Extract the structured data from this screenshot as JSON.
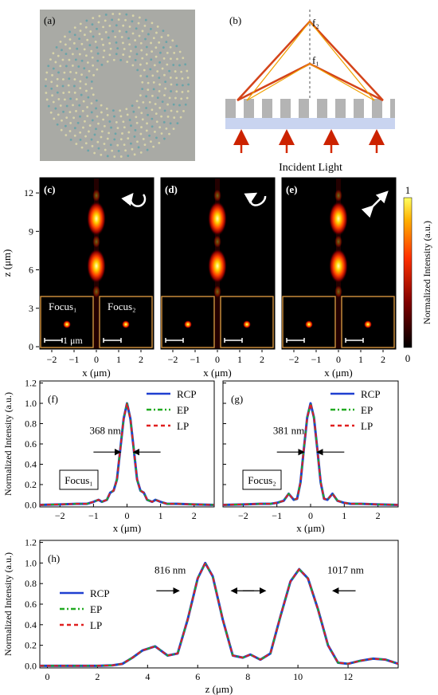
{
  "panels": {
    "a": {
      "label": "(a)"
    },
    "b": {
      "label": "(b)",
      "focus_labels": [
        "f₁",
        "f₂"
      ],
      "incident_label": "Incident Light"
    },
    "cde": {
      "labels": [
        "(c)",
        "(d)",
        "(e)"
      ],
      "polarization_icons": [
        "rcp-circle-arrow-icon",
        "ep-ellipse-arrow-icon",
        "lp-double-arrow-icon"
      ],
      "ylabel": "z (μm)",
      "xlabel": "x (μm)",
      "yticks": [
        "0",
        "3",
        "6",
        "9",
        "12"
      ],
      "xticks": [
        "−2",
        "−1",
        "0",
        "1",
        "2"
      ],
      "inset_labels": [
        "Focus₁",
        "Focus₂"
      ],
      "scalebar_label": "1 μm",
      "colorbar": {
        "label": "Normalized Intensity (a.u.)",
        "max": "1",
        "min": "0"
      }
    }
  },
  "chart_data": [
    {
      "type": "line",
      "panel": "(f)",
      "ylabel": "Normalized Intensity (a.u.)",
      "xlabel": "x (μm)",
      "xlim": [
        -2.6,
        2.6
      ],
      "ylim": [
        -0.02,
        1.22
      ],
      "xticks": [
        "−2",
        "−1",
        "0",
        "1",
        "2"
      ],
      "yticks": [
        "0.0",
        "0.2",
        "0.4",
        "0.6",
        "0.8",
        "1.0",
        "1.2"
      ],
      "legend": [
        "RCP",
        "EP",
        "LP"
      ],
      "annotation": "368 nm",
      "box_label": "Focus₁",
      "series": [
        {
          "name": "RCP",
          "color": "#1f3fd0",
          "x": [
            -2.6,
            -2.0,
            -1.5,
            -1.2,
            -1.0,
            -0.85,
            -0.75,
            -0.6,
            -0.5,
            -0.4,
            -0.3,
            -0.2,
            -0.1,
            0.0,
            0.1,
            0.2,
            0.3,
            0.4,
            0.5,
            0.6,
            0.75,
            0.85,
            1.0,
            1.2,
            1.5,
            2.0,
            2.6
          ],
          "y": [
            0.0,
            0.005,
            0.01,
            0.01,
            0.03,
            0.05,
            0.03,
            0.05,
            0.12,
            0.14,
            0.25,
            0.55,
            0.85,
            1.0,
            0.85,
            0.55,
            0.25,
            0.14,
            0.12,
            0.05,
            0.03,
            0.05,
            0.03,
            0.01,
            0.01,
            0.005,
            0.0
          ]
        },
        {
          "name": "EP",
          "color": "#22aa22"
        },
        {
          "name": "LP",
          "color": "#e02020"
        }
      ]
    },
    {
      "type": "line",
      "panel": "(g)",
      "xlabel": "x (μm)",
      "xlim": [
        -2.6,
        2.6
      ],
      "ylim": [
        -0.02,
        1.22
      ],
      "xticks": [
        "−2",
        "−1",
        "0",
        "1",
        "2"
      ],
      "legend": [
        "RCP",
        "EP",
        "LP"
      ],
      "annotation": "381 nm",
      "box_label": "Focus₂",
      "series": [
        {
          "name": "RCP",
          "color": "#1f3fd0",
          "x": [
            -2.6,
            -2.0,
            -1.5,
            -1.2,
            -1.0,
            -0.8,
            -0.65,
            -0.5,
            -0.4,
            -0.3,
            -0.2,
            -0.1,
            0.0,
            0.1,
            0.2,
            0.3,
            0.4,
            0.5,
            0.65,
            0.8,
            1.0,
            1.2,
            1.5,
            2.0,
            2.6
          ],
          "y": [
            0.0,
            0.005,
            0.01,
            0.01,
            0.02,
            0.04,
            0.11,
            0.05,
            0.06,
            0.22,
            0.55,
            0.86,
            1.0,
            0.86,
            0.55,
            0.22,
            0.06,
            0.05,
            0.11,
            0.04,
            0.02,
            0.01,
            0.01,
            0.005,
            0.0
          ]
        },
        {
          "name": "EP",
          "color": "#22aa22"
        },
        {
          "name": "LP",
          "color": "#e02020"
        }
      ]
    },
    {
      "type": "line",
      "panel": "(h)",
      "ylabel": "Normalized Intensity (a.u.)",
      "xlabel": "z (μm)",
      "xlim": [
        -0.3,
        14.0
      ],
      "ylim": [
        -0.02,
        1.22
      ],
      "xticks": [
        "0",
        "2",
        "4",
        "6",
        "8",
        "10",
        "12"
      ],
      "yticks": [
        "0.0",
        "0.2",
        "0.4",
        "0.6",
        "0.8",
        "1.0",
        "1.2"
      ],
      "legend": [
        "RCP",
        "EP",
        "LP"
      ],
      "annotations": [
        "816 nm",
        "1017 nm"
      ],
      "series": [
        {
          "name": "RCP",
          "color": "#1f3fd0",
          "x": [
            -0.3,
            1.0,
            2.0,
            2.6,
            3.0,
            3.4,
            3.8,
            4.3,
            4.8,
            5.2,
            5.6,
            6.0,
            6.3,
            6.6,
            7.0,
            7.4,
            7.8,
            8.1,
            8.5,
            8.9,
            9.3,
            9.7,
            10.05,
            10.4,
            10.8,
            11.2,
            11.6,
            12.0,
            12.5,
            13.0,
            13.5,
            14.0
          ],
          "y": [
            0.0,
            0.0,
            0.0,
            0.005,
            0.02,
            0.08,
            0.15,
            0.19,
            0.1,
            0.12,
            0.45,
            0.85,
            1.0,
            0.87,
            0.45,
            0.1,
            0.08,
            0.11,
            0.06,
            0.12,
            0.48,
            0.82,
            0.94,
            0.85,
            0.55,
            0.2,
            0.03,
            0.02,
            0.05,
            0.07,
            0.06,
            0.02
          ]
        },
        {
          "name": "EP",
          "color": "#22aa22"
        },
        {
          "name": "LP",
          "color": "#e02020"
        }
      ]
    }
  ]
}
